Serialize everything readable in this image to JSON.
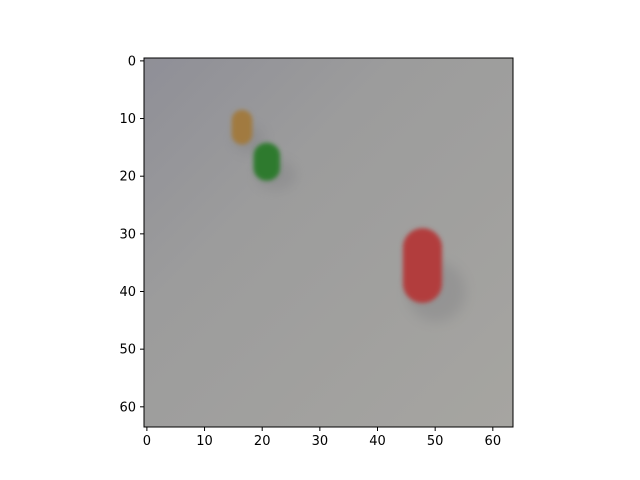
{
  "chart_data": {
    "type": "image",
    "title": "",
    "xlabel": "",
    "ylabel": "",
    "x_ticks": [
      "0",
      "10",
      "20",
      "30",
      "40",
      "50",
      "60"
    ],
    "y_ticks": [
      "0",
      "10",
      "20",
      "30",
      "40",
      "50",
      "60"
    ],
    "x_range": [
      -0.5,
      63.5
    ],
    "y_range": [
      -0.5,
      63.5
    ],
    "pixel_grid": [
      64,
      64
    ],
    "background_color": "#9a9a9a",
    "objects": [
      {
        "label": "orange-cylinder",
        "center": [
          16.5,
          11.5
        ],
        "size": [
          3.6,
          6.0
        ],
        "color": "#a17a3f"
      },
      {
        "label": "green-cylinder",
        "center": [
          20.8,
          17.5
        ],
        "size": [
          4.6,
          6.6
        ],
        "color": "#2f7a2d"
      },
      {
        "label": "red-cylinder",
        "center": [
          47.8,
          35.5
        ],
        "size": [
          6.8,
          13.0
        ],
        "color": "#b23d3e"
      }
    ]
  }
}
